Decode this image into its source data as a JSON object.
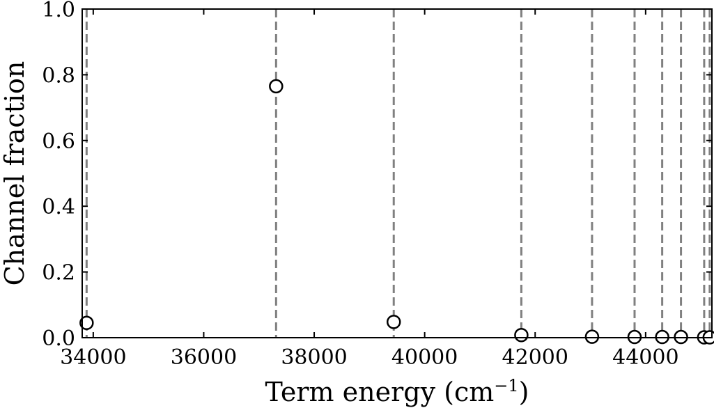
{
  "chart_data": {
    "type": "scatter",
    "title": "",
    "xlabel": {
      "text": "Term energy (cm",
      "superscript": "−1",
      "suffix": ")"
    },
    "ylabel": "Channel fraction",
    "xlim": [
      33800,
      45200
    ],
    "ylim": [
      0.0,
      1.0
    ],
    "x_ticks": [
      {
        "value": 34000,
        "label": "34000"
      },
      {
        "value": 36000,
        "label": "36000"
      },
      {
        "value": 38000,
        "label": "38000"
      },
      {
        "value": 40000,
        "label": "40000"
      },
      {
        "value": 42000,
        "label": "42000"
      },
      {
        "value": 44000,
        "label": "44000"
      }
    ],
    "y_ticks": [
      {
        "value": 0.0,
        "label": "0.0"
      },
      {
        "value": 0.2,
        "label": "0.2"
      },
      {
        "value": 0.4,
        "label": "0.4"
      },
      {
        "value": 0.6,
        "label": "0.6"
      },
      {
        "value": 0.8,
        "label": "0.8"
      },
      {
        "value": 1.0,
        "label": "1.0"
      }
    ],
    "vertical_lines": [
      33880,
      37310,
      39440,
      41750,
      43030,
      43800,
      44300,
      44640,
      45060,
      45160
    ],
    "series": [
      {
        "marker": "open-circle",
        "points": [
          {
            "x": 33880,
            "y": 0.045
          },
          {
            "x": 37310,
            "y": 0.765
          },
          {
            "x": 39440,
            "y": 0.048
          },
          {
            "x": 41750,
            "y": 0.008
          },
          {
            "x": 43030,
            "y": 0.003
          },
          {
            "x": 43800,
            "y": 0.002
          },
          {
            "x": 44300,
            "y": 0.002
          },
          {
            "x": 44640,
            "y": 0.002
          },
          {
            "x": 45060,
            "y": 0.001
          },
          {
            "x": 45160,
            "y": 0.001
          }
        ]
      }
    ],
    "grid": false,
    "legend": "none",
    "colors": {
      "marker_edge": "#000000",
      "marker_face": "#ffffff",
      "vline": "#808080",
      "axes": "#000000"
    }
  }
}
